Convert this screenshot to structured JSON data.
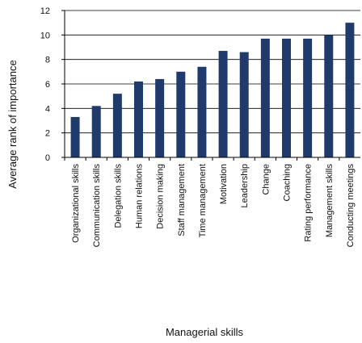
{
  "chart_data": {
    "type": "bar",
    "xlabel": "Managerial skills",
    "ylabel": "Average rank of importance",
    "ylim": [
      0,
      12
    ],
    "yticks": [
      0,
      2,
      4,
      6,
      8,
      10,
      12
    ],
    "grid": true,
    "bar_color": "#1f3a6b",
    "categories": [
      "Organizational skills",
      "Communication skills",
      "Delegation skills",
      "Human relations",
      "Decision making",
      "Staff management",
      "Time management",
      "Motivation",
      "Leadership",
      "Change",
      "Coaching",
      "Rating performance",
      "Management skills",
      "Conducting meetings"
    ],
    "values": [
      3.3,
      4.2,
      5.2,
      6.2,
      6.4,
      7.0,
      7.4,
      8.7,
      8.6,
      9.7,
      9.7,
      9.7,
      10.0,
      11.0
    ]
  }
}
